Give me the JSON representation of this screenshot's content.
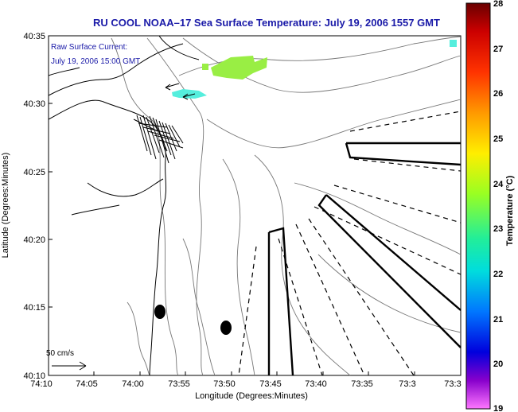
{
  "title": "RU COOL  NOAA–17  Sea Surface Temperature:  July 19, 2006 1557 GMT",
  "current_note": {
    "line1": "Raw Surface Current:",
    "line2": "July 19, 2006 15:00 GMT"
  },
  "scale_label": "50 cm/s",
  "axes": {
    "xlabel": "Longitude (Degrees:Minutes)",
    "ylabel": "Latitude (Degrees:Minutes)",
    "x_ticks": [
      "74:10",
      "74:05",
      "74:00",
      "73:55",
      "73:50",
      "73:45",
      "73:40",
      "73:35",
      "73:3"
    ],
    "y_ticks": [
      "40:35",
      "40:30",
      "40:25",
      "40:20",
      "40:15",
      "40:10"
    ]
  },
  "colorbar": {
    "label": "Temperature (°C)",
    "ticks": [
      "28",
      "27",
      "26",
      "25",
      "24",
      "23",
      "22",
      "21",
      "20",
      "19"
    ],
    "colors": [
      "#8b0000",
      "#cc0000",
      "#ff3300",
      "#ff8800",
      "#ffdd00",
      "#aaff00",
      "#22ee88",
      "#00dddd",
      "#0088ff",
      "#0000ff",
      "#6600cc",
      "#ff66ff"
    ]
  },
  "sst_patch_colors": {
    "green": "#99ee44",
    "cyan": "#55eedd"
  },
  "icons": [
    "coastline-map",
    "bathymetry-contours",
    "current-vectors",
    "scale-arrow"
  ]
}
